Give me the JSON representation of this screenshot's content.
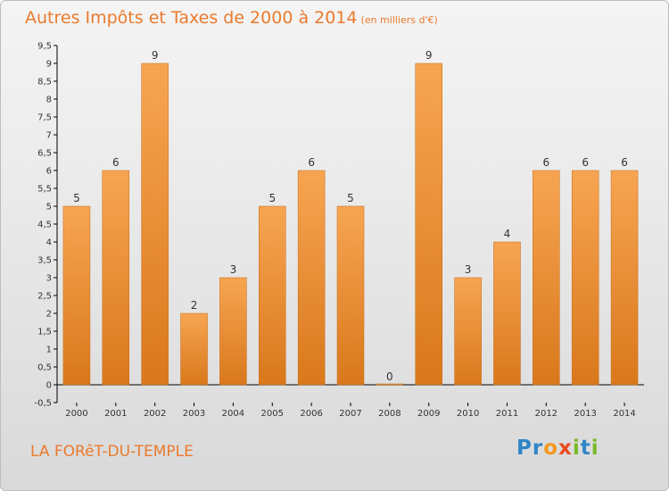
{
  "header": {
    "title": "Autres Impôts et Taxes de 2000 à 2014",
    "unit": "(en milliers d'€)"
  },
  "footer": {
    "commune": "LA FORêT-DU-TEMPLE",
    "logo_letters": [
      "P",
      "r",
      "o",
      "x",
      "i",
      "t",
      "i"
    ],
    "logo_colors": [
      "#2f86c8",
      "#2f86c8",
      "#f29a1f",
      "#e94b1b",
      "#7bb928",
      "#2f86c8",
      "#7bb928"
    ]
  },
  "colors": {
    "bar_top": "#f7a552",
    "bar_bottom": "#d9781c",
    "axis": "#000000",
    "grid": "#d0d0d0"
  },
  "chart_data": {
    "type": "bar",
    "categories": [
      "2000",
      "2001",
      "2002",
      "2003",
      "2004",
      "2005",
      "2006",
      "2007",
      "2008",
      "2009",
      "2010",
      "2011",
      "2012",
      "2013",
      "2014"
    ],
    "values": [
      5,
      6,
      9,
      2,
      3,
      5,
      6,
      5,
      0,
      9,
      3,
      4,
      6,
      6,
      6
    ],
    "value_labels": [
      "5",
      "6",
      "9",
      "2",
      "3",
      "5",
      "6",
      "5",
      "0",
      "9",
      "3",
      "4",
      "6",
      "6",
      "6"
    ],
    "yticks": [
      "-0,5",
      "0",
      "0,5",
      "1",
      "1,5",
      "2",
      "2,5",
      "3",
      "3,5",
      "4",
      "4,5",
      "5",
      "5,5",
      "6",
      "6,5",
      "7",
      "7,5",
      "8",
      "8,5",
      "9",
      "9,5"
    ],
    "ylim": [
      -0.5,
      9.5
    ],
    "title": "Autres Impôts et Taxes de 2000 à 2014",
    "xlabel": "",
    "ylabel": "",
    "grid": false,
    "legend": "none"
  }
}
